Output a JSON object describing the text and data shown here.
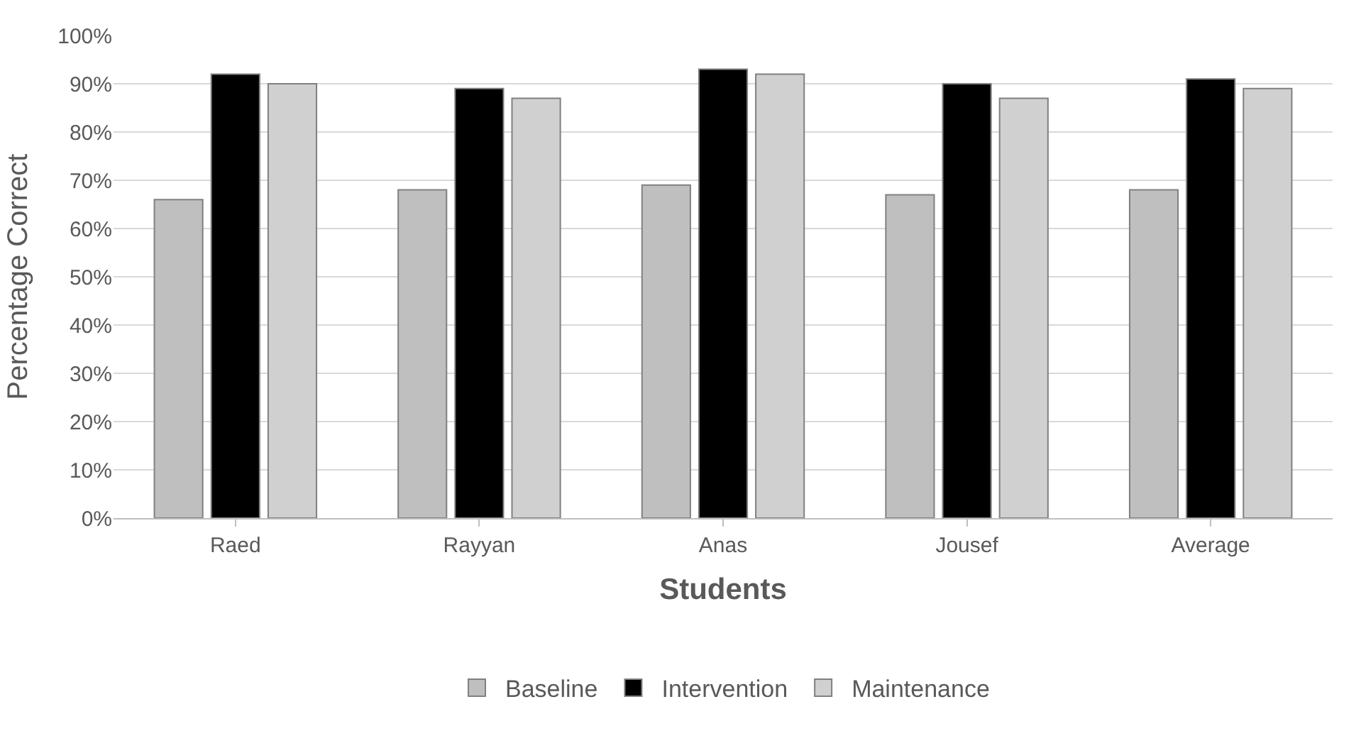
{
  "chart_data": {
    "type": "bar",
    "xlabel": "Students",
    "ylabel": "Percentage Correct",
    "categories": [
      "Raed",
      "Rayyan",
      "Anas",
      "Jousef",
      "Average"
    ],
    "series": [
      {
        "name": "Baseline",
        "color": "#bfbfbf",
        "values": [
          66,
          68,
          69,
          67,
          68
        ]
      },
      {
        "name": "Intervention",
        "color": "#000000",
        "values": [
          92,
          89,
          93,
          90,
          91
        ]
      },
      {
        "name": "Maintenance",
        "color": "#d0d0d0",
        "values": [
          90,
          87,
          92,
          87,
          89
        ]
      }
    ],
    "ylim": [
      0,
      100
    ],
    "yticks": [
      {
        "value": 0,
        "label": "0%"
      },
      {
        "value": 10,
        "label": "10%"
      },
      {
        "value": 20,
        "label": "20%"
      },
      {
        "value": 30,
        "label": "30%"
      },
      {
        "value": 40,
        "label": "40%"
      },
      {
        "value": 50,
        "label": "50%"
      },
      {
        "value": 60,
        "label": "60%"
      },
      {
        "value": 70,
        "label": "70%"
      },
      {
        "value": 80,
        "label": "80%"
      },
      {
        "value": 90,
        "label": "90%"
      },
      {
        "value": 100,
        "label": "100%"
      }
    ],
    "grid": "y",
    "legend": "bottom"
  }
}
